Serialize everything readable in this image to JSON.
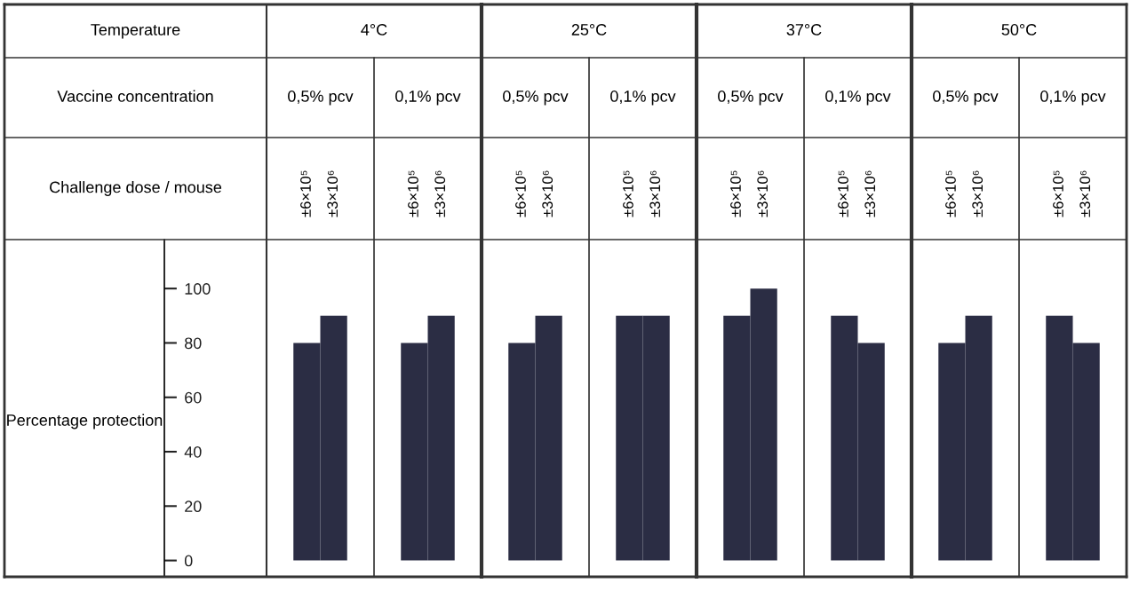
{
  "chart_data": {
    "type": "bar",
    "categories": [
      "±6×10⁵",
      "±3×10⁶",
      "±6×10⁵",
      "±3×10⁶",
      "±6×10⁵",
      "±3×10⁶",
      "±6×10⁵",
      "±3×10⁶",
      "±6×10⁵",
      "±3×10⁶",
      "±6×10⁵",
      "±3×10⁶",
      "±6×10⁵",
      "±3×10⁶",
      "±6×10⁵",
      "±3×10⁶"
    ],
    "values": [
      80,
      90,
      80,
      90,
      80,
      90,
      90,
      90,
      90,
      100,
      90,
      80,
      80,
      90,
      90,
      80
    ],
    "color": "#2b2d44",
    "ylabel": "Percentage protection",
    "ylim": [
      -6,
      118
    ],
    "yticks": [
      0,
      20,
      40,
      60,
      80,
      100
    ],
    "grid": false,
    "annotations": [
      "Temperature",
      "4°C",
      "25°C",
      "37°C",
      "50°C",
      "Vaccine concentration",
      "0,5% pcv",
      "0,1% pcv",
      "0,5% pcv",
      "0,1% pcv",
      "0,5% pcv",
      "0,1% pcv",
      "0,5% pcv",
      "0,1% pcv",
      "Challenge dose / mouse"
    ]
  }
}
